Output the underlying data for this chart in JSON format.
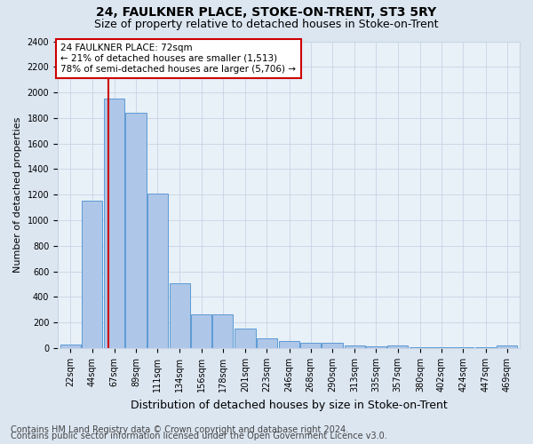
{
  "title": "24, FAULKNER PLACE, STOKE-ON-TRENT, ST3 5RY",
  "subtitle": "Size of property relative to detached houses in Stoke-on-Trent",
  "xlabel": "Distribution of detached houses by size in Stoke-on-Trent",
  "ylabel": "Number of detached properties",
  "footer1": "Contains HM Land Registry data © Crown copyright and database right 2024.",
  "footer2": "Contains public sector information licensed under the Open Government Licence v3.0.",
  "bar_values": [
    30,
    1150,
    1950,
    1840,
    1210,
    510,
    265,
    265,
    155,
    80,
    55,
    45,
    45,
    20,
    15,
    20,
    5,
    5,
    5,
    5,
    20
  ],
  "bin_edges": [
    22,
    44,
    67,
    89,
    111,
    134,
    156,
    178,
    201,
    223,
    246,
    268,
    290,
    313,
    335,
    357,
    380,
    402,
    424,
    447,
    469
  ],
  "bin_width": 22,
  "bar_color": "#aec6e8",
  "bar_edge_color": "#5b9bd5",
  "property_size": 72,
  "property_line_color": "#cc0000",
  "annotation_text": "24 FAULKNER PLACE: 72sqm\n← 21% of detached houses are smaller (1,513)\n78% of semi-detached houses are larger (5,706) →",
  "annotation_box_color": "#cc0000",
  "annotation_text_color": "#000000",
  "ylim": [
    0,
    2400
  ],
  "yticks": [
    0,
    200,
    400,
    600,
    800,
    1000,
    1200,
    1400,
    1600,
    1800,
    2000,
    2200,
    2400
  ],
  "grid_color": "#c8d4e4",
  "background_color": "#dce6f1",
  "plot_background_color": "#e8f0f8",
  "title_fontsize": 10,
  "subtitle_fontsize": 9,
  "xlabel_fontsize": 9,
  "ylabel_fontsize": 8,
  "tick_fontsize": 7,
  "annotation_fontsize": 7.5,
  "footer_fontsize": 7
}
